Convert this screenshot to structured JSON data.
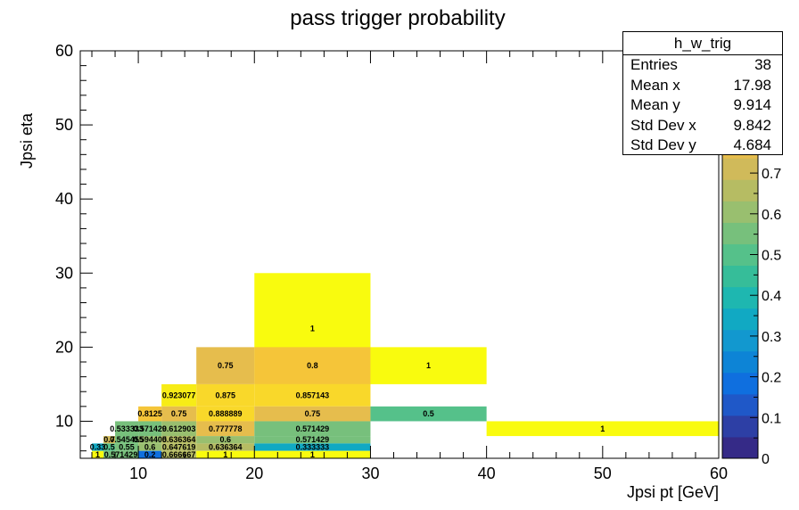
{
  "chart_data": {
    "type": "heatmap",
    "title": "pass trigger probability",
    "xlabel": "Jpsi pt [GeV]",
    "ylabel": "Jpsi eta",
    "xlim": [
      5,
      60
    ],
    "ylim": [
      5,
      60
    ],
    "zlim": [
      0,
      1
    ],
    "x_ticks": [
      "10",
      "20",
      "30",
      "40",
      "50",
      "60"
    ],
    "y_ticks": [
      "10",
      "20",
      "30",
      "40",
      "50",
      "60"
    ],
    "z_ticks": [
      "0",
      "0.1",
      "0.2",
      "0.3",
      "0.4",
      "0.5",
      "0.6",
      "0.7"
    ],
    "grid": false,
    "palette": [
      "#352a87",
      "#2d3fa5",
      "#1f58c8",
      "#0f6fdf",
      "#0d84d6",
      "#1298cf",
      "#11a9c3",
      "#1eb7b0",
      "#36bd99",
      "#55c18a",
      "#77c07c",
      "#99bf6f",
      "#b6bc63",
      "#d0ba5a",
      "#e6bd4d",
      "#f5c539",
      "#f9d82a",
      "#f7ec16",
      "#f9fb0e"
    ],
    "cells": [
      {
        "x": [
          20,
          30
        ],
        "y": [
          15,
          30
        ],
        "z": 1,
        "label": "1"
      },
      {
        "x": [
          15,
          20
        ],
        "y": [
          15,
          20
        ],
        "z": 0.75,
        "label": "0.75"
      },
      {
        "x": [
          20,
          30
        ],
        "y": [
          15,
          20
        ],
        "z": 0.8,
        "label": "0.8"
      },
      {
        "x": [
          30,
          40
        ],
        "y": [
          15,
          20
        ],
        "z": 1,
        "label": "1"
      },
      {
        "x": [
          12,
          15
        ],
        "y": [
          12,
          15
        ],
        "z": 0.923077,
        "label": "0.923077"
      },
      {
        "x": [
          15,
          20
        ],
        "y": [
          12,
          15
        ],
        "z": 0.875,
        "label": "0.875"
      },
      {
        "x": [
          20,
          30
        ],
        "y": [
          12,
          15
        ],
        "z": 0.857143,
        "label": "0.857143"
      },
      {
        "x": [
          10,
          12
        ],
        "y": [
          10,
          12
        ],
        "z": 0.8125,
        "label": "0.8125"
      },
      {
        "x": [
          12,
          15
        ],
        "y": [
          10,
          12
        ],
        "z": 0.75,
        "label": "0.75"
      },
      {
        "x": [
          15,
          20
        ],
        "y": [
          10,
          12
        ],
        "z": 0.888889,
        "label": "0.888889"
      },
      {
        "x": [
          20,
          30
        ],
        "y": [
          10,
          12
        ],
        "z": 0.75,
        "label": "0.75"
      },
      {
        "x": [
          30,
          40
        ],
        "y": [
          10,
          12
        ],
        "z": 0.5,
        "label": "0.5"
      },
      {
        "x": [
          40,
          60
        ],
        "y": [
          8,
          10
        ],
        "z": 1,
        "label": "1"
      },
      {
        "x": [
          8,
          10
        ],
        "y": [
          8,
          10
        ],
        "z": 0.533333,
        "label": "0.533333"
      },
      {
        "x": [
          10,
          12
        ],
        "y": [
          8,
          10
        ],
        "z": 0.571429,
        "label": "0.571429"
      },
      {
        "x": [
          12,
          15
        ],
        "y": [
          8,
          10
        ],
        "z": 0.612903,
        "label": "0.612903"
      },
      {
        "x": [
          15,
          20
        ],
        "y": [
          8,
          10
        ],
        "z": 0.777778,
        "label": "0.777778"
      },
      {
        "x": [
          20,
          30
        ],
        "y": [
          8,
          10
        ],
        "z": 0.571429,
        "label": "0.571429"
      },
      {
        "x": [
          7,
          8
        ],
        "y": [
          7,
          8
        ],
        "z": 0.7,
        "label": "0.7"
      },
      {
        "x": [
          8,
          10
        ],
        "y": [
          7,
          8
        ],
        "z": 0.545455,
        "label": "0.545455"
      },
      {
        "x": [
          10,
          12
        ],
        "y": [
          7,
          8
        ],
        "z": 0.594405,
        "label": "0.594405"
      },
      {
        "x": [
          12,
          15
        ],
        "y": [
          7,
          8
        ],
        "z": 0.636364,
        "label": "0.636364"
      },
      {
        "x": [
          15,
          20
        ],
        "y": [
          7,
          8
        ],
        "z": 0.6,
        "label": "0.6"
      },
      {
        "x": [
          20,
          30
        ],
        "y": [
          7,
          8
        ],
        "z": 0.571429,
        "label": "0.571429"
      },
      {
        "x": [
          6,
          7
        ],
        "y": [
          6,
          7
        ],
        "z": 0.33,
        "label": "0.33"
      },
      {
        "x": [
          7,
          8
        ],
        "y": [
          6,
          7
        ],
        "z": 0.5,
        "label": "0.5"
      },
      {
        "x": [
          8,
          10
        ],
        "y": [
          6,
          7
        ],
        "z": 0.55,
        "label": "0.55"
      },
      {
        "x": [
          10,
          12
        ],
        "y": [
          6,
          7
        ],
        "z": 0.6,
        "label": "0.6"
      },
      {
        "x": [
          12,
          15
        ],
        "y": [
          6,
          7
        ],
        "z": 0.647619,
        "label": "0.647619"
      },
      {
        "x": [
          15,
          20
        ],
        "y": [
          6,
          7
        ],
        "z": 0.636364,
        "label": "0.636364"
      },
      {
        "x": [
          20,
          30
        ],
        "y": [
          6,
          7
        ],
        "z": 0.333333,
        "label": "0.333333"
      },
      {
        "x": [
          6,
          7
        ],
        "y": [
          5,
          6
        ],
        "z": 1,
        "label": "1"
      },
      {
        "x": [
          7,
          10
        ],
        "y": [
          5,
          6
        ],
        "z": 0.571429,
        "label": "0.571429"
      },
      {
        "x": [
          10,
          12
        ],
        "y": [
          5,
          6
        ],
        "z": 0.2,
        "label": "0.2"
      },
      {
        "x": [
          12,
          15
        ],
        "y": [
          5,
          6
        ],
        "z": 0.666667,
        "label": "0.666667"
      },
      {
        "x": [
          15,
          20
        ],
        "y": [
          5,
          6
        ],
        "z": 1,
        "label": "1"
      },
      {
        "x": [
          20,
          30
        ],
        "y": [
          5,
          6
        ],
        "z": 1,
        "label": "1"
      }
    ]
  },
  "stats": {
    "title": "h_w_trig",
    "rows": [
      {
        "key": "Entries",
        "value": "38"
      },
      {
        "key": "Mean x",
        "value": "17.98"
      },
      {
        "key": "Mean y",
        "value": "9.914"
      },
      {
        "key": "Std Dev x",
        "value": "9.842"
      },
      {
        "key": "Std Dev y",
        "value": "4.684"
      }
    ]
  }
}
